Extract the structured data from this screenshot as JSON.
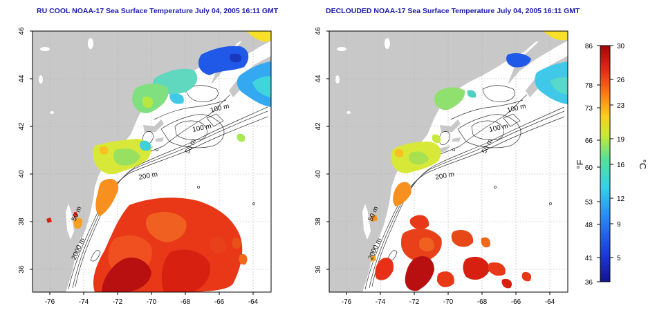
{
  "titles": {
    "left": "RU COOL NOAA-17 Sea Surface Temperature July 04, 2005 16:11 GMT",
    "right": "DECLOUDED NOAA-17 Sea Surface Temperature July 04, 2005 16:11 GMT"
  },
  "axes": {
    "lon_ticks": [
      "-76",
      "-74",
      "-72",
      "-70",
      "-68",
      "-66",
      "-64"
    ],
    "lat_ticks": [
      "46",
      "44",
      "42",
      "40",
      "38",
      "36"
    ],
    "lon_range": [
      -77,
      -63
    ],
    "lat_range": [
      35,
      46
    ]
  },
  "contour_labels": [
    "100 m",
    "100 m",
    "50 m",
    "200 m",
    "50 m",
    "2000 m"
  ],
  "colorbar": {
    "f_ticks": [
      "86",
      "78",
      "73",
      "66",
      "60",
      "53",
      "48",
      "41",
      "36"
    ],
    "c_ticks": [
      "30",
      "26",
      "23",
      "19",
      "16",
      "12",
      "9",
      "5"
    ],
    "f_label": "°F",
    "c_label": "°C",
    "range_c": [
      2,
      30
    ]
  },
  "colors": {
    "land": "#c8c8c8",
    "title": "#1a1aa8",
    "warm": "#cc1010",
    "cold": "#1040d8"
  }
}
